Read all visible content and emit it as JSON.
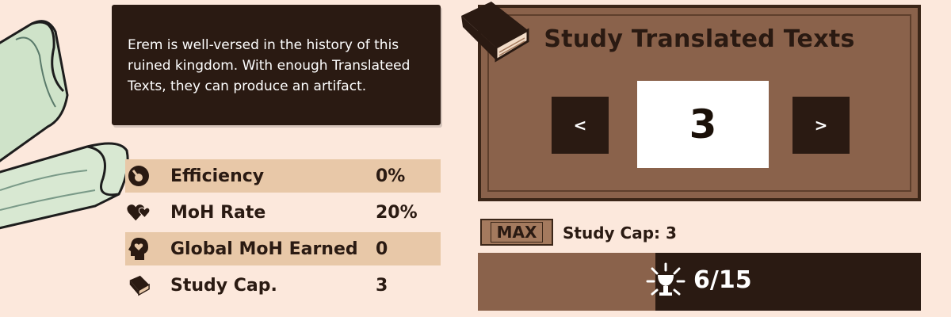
{
  "description": "Erem is well-versed in the history of this ruined kingdom.  With enough Translateed Texts, they can produce an artifact.",
  "stats": [
    {
      "icon": "efficiency-gauge-icon",
      "label": "Efficiency",
      "value": "0%"
    },
    {
      "icon": "hearts-icon",
      "label": "MoH Rate",
      "value": "20%"
    },
    {
      "icon": "head-heart-icon",
      "label": "Global MoH Earned",
      "value": "0"
    },
    {
      "icon": "book-icon",
      "label": "Study Cap.",
      "value": "3"
    }
  ],
  "study": {
    "title": "Study Translated Texts",
    "quantity": "3",
    "prev_label": "<",
    "next_label": ">"
  },
  "cap": {
    "badge": "MAX",
    "text": "Study Cap: 3"
  },
  "progress": {
    "current": 6,
    "max": 15,
    "text": "6/15"
  },
  "colors": {
    "background": "#fce8dc",
    "dark": "#2a1a12",
    "panel": "#8a624b",
    "row_shade": "#e8c8a8"
  }
}
